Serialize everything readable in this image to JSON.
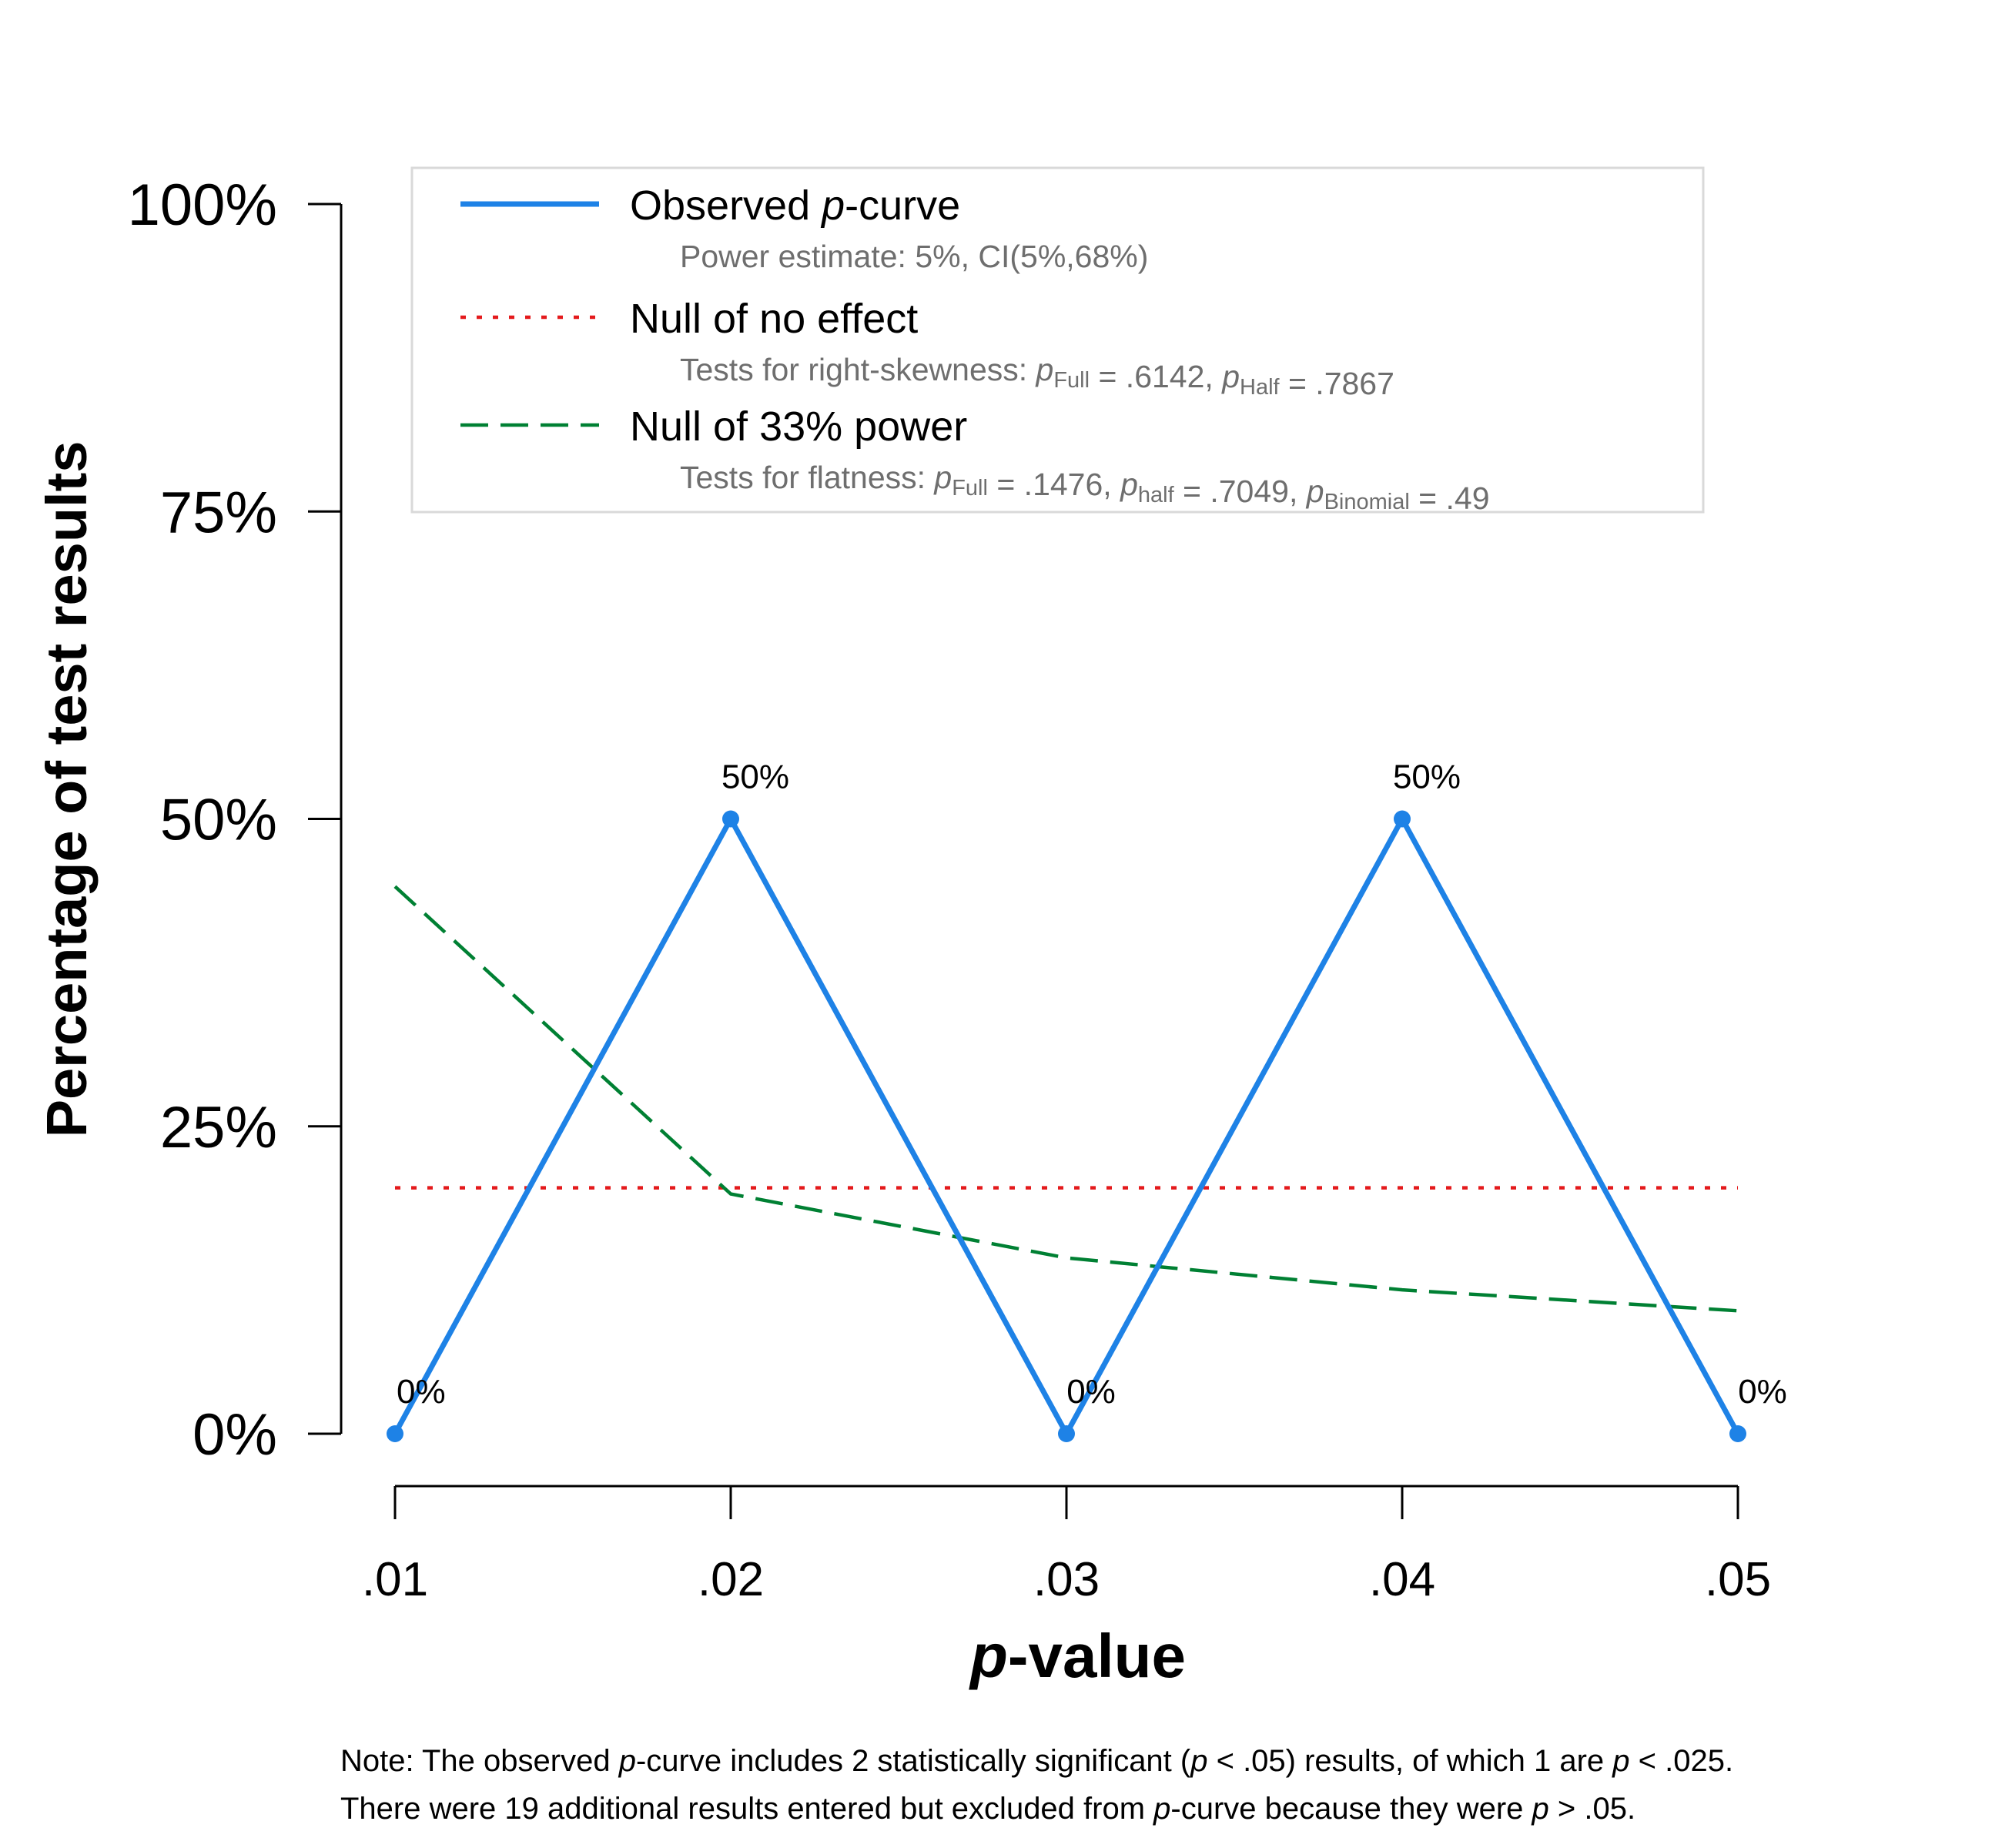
{
  "chart_data": {
    "type": "line",
    "xlabel_italic": "p",
    "xlabel_rest": "-value",
    "ylabel": "Percentage of test results",
    "x": [
      0.01,
      0.02,
      0.03,
      0.04,
      0.05
    ],
    "x_tick_labels": [
      ".01",
      ".02",
      ".03",
      ".04",
      ".05"
    ],
    "ylim": [
      0,
      100
    ],
    "y_ticks": [
      0,
      25,
      50,
      75,
      100
    ],
    "y_tick_labels": [
      "0%",
      "25%",
      "50%",
      "75%",
      "100%"
    ],
    "grid": false,
    "legend_position": "top",
    "series": [
      {
        "id": "observed",
        "values": [
          0,
          50,
          0,
          50,
          0
        ],
        "data_labels": [
          "0%",
          "50%",
          "0%",
          "50%",
          "0%"
        ],
        "color": "#1e82e6",
        "style": "solid"
      },
      {
        "id": "null_no_effect",
        "values": [
          20,
          20,
          20,
          20,
          20
        ],
        "color": "#e41a1c",
        "style": "dotted"
      },
      {
        "id": "null_33_power",
        "values": [
          44.5,
          19.5,
          14.3,
          11.7,
          10.0
        ],
        "color": "#008033",
        "style": "dashed"
      }
    ],
    "legend": [
      {
        "series": "observed",
        "title_pre": "Observed ",
        "title_italic": "p",
        "title_post": "-curve",
        "detail": [
          {
            "t": "Power estimate: 5%, CI(5%,68%)"
          }
        ]
      },
      {
        "series": "null_no_effect",
        "title_pre": "Null of no effect",
        "title_italic": "",
        "title_post": "",
        "detail": [
          {
            "t": "Tests for right-skewness: "
          },
          {
            "t": "p",
            "italic": true
          },
          {
            "t": "Full",
            "sub": true
          },
          {
            "t": " = .6142,  "
          },
          {
            "t": "p",
            "italic": true
          },
          {
            "t": "Half",
            "sub": true
          },
          {
            "t": " = .7867"
          }
        ]
      },
      {
        "series": "null_33_power",
        "title_pre": "Null of 33% power",
        "title_italic": "",
        "title_post": "",
        "detail": [
          {
            "t": "Tests for flatness: "
          },
          {
            "t": "p",
            "italic": true
          },
          {
            "t": "Full",
            "sub": true
          },
          {
            "t": " = .1476,  "
          },
          {
            "t": "p",
            "italic": true
          },
          {
            "t": "half",
            "sub": true
          },
          {
            "t": " = .7049,  "
          },
          {
            "t": "p",
            "italic": true
          },
          {
            "t": "Binomial",
            "sub": true
          },
          {
            "t": " = .49"
          }
        ]
      }
    ],
    "note_lines": [
      [
        {
          "t": "Note: The observed "
        },
        {
          "t": "p",
          "italic": true
        },
        {
          "t": "-curve includes 2 statistically significant ("
        },
        {
          "t": "p",
          "italic": true
        },
        {
          "t": " < .05) results, of which 1 are "
        },
        {
          "t": "p",
          "italic": true
        },
        {
          "t": " < .025."
        }
      ],
      [
        {
          "t": "There were 19 additional results entered but excluded from "
        },
        {
          "t": "p",
          "italic": true
        },
        {
          "t": "-curve because they were "
        },
        {
          "t": "p",
          "italic": true
        },
        {
          "t": " > .05."
        }
      ]
    ]
  }
}
